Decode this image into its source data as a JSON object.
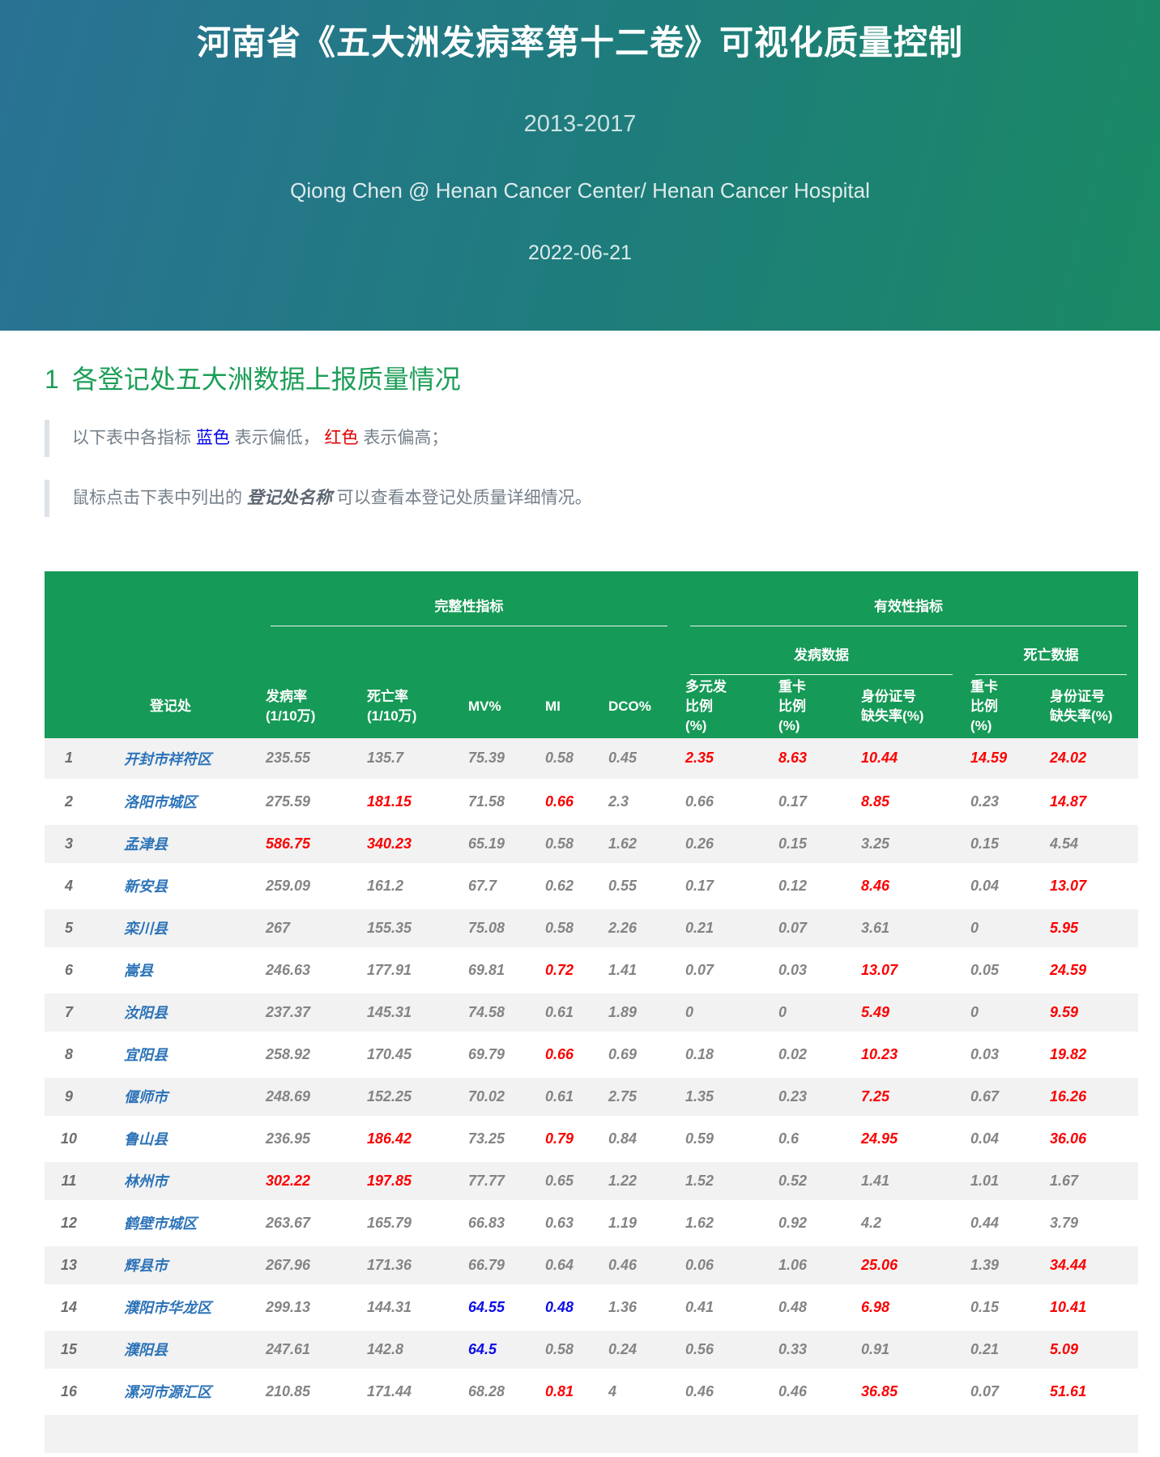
{
  "banner": {
    "title": "河南省《五大洲发病率第十二卷》可视化质量控制",
    "subtitle": "2013-2017",
    "author": "Qiong Chen @ Henan Cancer Center/ Henan Cancer Hospital",
    "date": "2022-06-21",
    "gradient_left": "#2a7294",
    "gradient_right": "#1a8a63"
  },
  "section": {
    "number": "1",
    "title": "各登记处五大洲数据上报质量情况",
    "color": "#1c9e58"
  },
  "notes": {
    "note1": {
      "p1": "以下表中各指标 ",
      "blue_word": "蓝色",
      "p2": " 表示偏低， ",
      "red_word": "红色",
      "p3": " 表示偏高；"
    },
    "note2": {
      "p1": "鼠标点击下表中列出的 ",
      "em_word": "登记处名称",
      "p2": " 可以查看本登记处质量详细情况。"
    }
  },
  "table": {
    "colors": {
      "header_bg": "#169a57",
      "high_value": "#fb0000",
      "low_value": "#0d0de8",
      "normal_value": "#848484",
      "registry_link": "#2c73b8",
      "stripe": "#f2f2f2"
    },
    "header": {
      "group_completeness": "完整性指标",
      "group_validity": "有效性指标",
      "sub_incidence": "发病数据",
      "sub_mortality": "死亡数据",
      "columns": [
        "登记处",
        "发病率\n(1/10万)",
        "死亡率\n(1/10万)",
        "MV%",
        "MI",
        "DCO%",
        "多元发\n比例\n(%)",
        "重卡\n比例\n(%)",
        "身份证号\n缺失率(%)",
        "重卡\n比例\n(%)",
        "身份证号\n缺失率(%)"
      ]
    },
    "rows": [
      {
        "no": "1",
        "registry": "开封市祥符区",
        "values": [
          {
            "v": "235.55"
          },
          {
            "v": "135.7"
          },
          {
            "v": "75.39"
          },
          {
            "v": "0.58"
          },
          {
            "v": "0.45"
          },
          {
            "v": "2.35",
            "f": "high"
          },
          {
            "v": "8.63",
            "f": "high"
          },
          {
            "v": "10.44",
            "f": "high"
          },
          {
            "v": "14.59",
            "f": "high"
          },
          {
            "v": "24.02",
            "f": "high"
          }
        ]
      },
      {
        "no": "2",
        "registry": "洛阳市城区",
        "values": [
          {
            "v": "275.59"
          },
          {
            "v": "181.15",
            "f": "high"
          },
          {
            "v": "71.58"
          },
          {
            "v": "0.66",
            "f": "high"
          },
          {
            "v": "2.3"
          },
          {
            "v": "0.66"
          },
          {
            "v": "0.17"
          },
          {
            "v": "8.85",
            "f": "high"
          },
          {
            "v": "0.23"
          },
          {
            "v": "14.87",
            "f": "high"
          }
        ]
      },
      {
        "no": "3",
        "registry": "孟津县",
        "values": [
          {
            "v": "586.75",
            "f": "high"
          },
          {
            "v": "340.23",
            "f": "high"
          },
          {
            "v": "65.19"
          },
          {
            "v": "0.58"
          },
          {
            "v": "1.62"
          },
          {
            "v": "0.26"
          },
          {
            "v": "0.15"
          },
          {
            "v": "3.25"
          },
          {
            "v": "0.15"
          },
          {
            "v": "4.54"
          }
        ]
      },
      {
        "no": "4",
        "registry": "新安县",
        "values": [
          {
            "v": "259.09"
          },
          {
            "v": "161.2"
          },
          {
            "v": "67.7"
          },
          {
            "v": "0.62"
          },
          {
            "v": "0.55"
          },
          {
            "v": "0.17"
          },
          {
            "v": "0.12"
          },
          {
            "v": "8.46",
            "f": "high"
          },
          {
            "v": "0.04"
          },
          {
            "v": "13.07",
            "f": "high"
          }
        ]
      },
      {
        "no": "5",
        "registry": "栾川县",
        "values": [
          {
            "v": "267"
          },
          {
            "v": "155.35"
          },
          {
            "v": "75.08"
          },
          {
            "v": "0.58"
          },
          {
            "v": "2.26"
          },
          {
            "v": "0.21"
          },
          {
            "v": "0.07"
          },
          {
            "v": "3.61"
          },
          {
            "v": "0"
          },
          {
            "v": "5.95",
            "f": "high"
          }
        ]
      },
      {
        "no": "6",
        "registry": "嵩县",
        "values": [
          {
            "v": "246.63"
          },
          {
            "v": "177.91"
          },
          {
            "v": "69.81"
          },
          {
            "v": "0.72",
            "f": "high"
          },
          {
            "v": "1.41"
          },
          {
            "v": "0.07"
          },
          {
            "v": "0.03"
          },
          {
            "v": "13.07",
            "f": "high"
          },
          {
            "v": "0.05"
          },
          {
            "v": "24.59",
            "f": "high"
          }
        ]
      },
      {
        "no": "7",
        "registry": "汝阳县",
        "values": [
          {
            "v": "237.37"
          },
          {
            "v": "145.31"
          },
          {
            "v": "74.58"
          },
          {
            "v": "0.61"
          },
          {
            "v": "1.89"
          },
          {
            "v": "0"
          },
          {
            "v": "0"
          },
          {
            "v": "5.49",
            "f": "high"
          },
          {
            "v": "0"
          },
          {
            "v": "9.59",
            "f": "high"
          }
        ]
      },
      {
        "no": "8",
        "registry": "宜阳县",
        "values": [
          {
            "v": "258.92"
          },
          {
            "v": "170.45"
          },
          {
            "v": "69.79"
          },
          {
            "v": "0.66",
            "f": "high"
          },
          {
            "v": "0.69"
          },
          {
            "v": "0.18"
          },
          {
            "v": "0.02"
          },
          {
            "v": "10.23",
            "f": "high"
          },
          {
            "v": "0.03"
          },
          {
            "v": "19.82",
            "f": "high"
          }
        ]
      },
      {
        "no": "9",
        "registry": "偃师市",
        "values": [
          {
            "v": "248.69"
          },
          {
            "v": "152.25"
          },
          {
            "v": "70.02"
          },
          {
            "v": "0.61"
          },
          {
            "v": "2.75"
          },
          {
            "v": "1.35"
          },
          {
            "v": "0.23"
          },
          {
            "v": "7.25",
            "f": "high"
          },
          {
            "v": "0.67"
          },
          {
            "v": "16.26",
            "f": "high"
          }
        ]
      },
      {
        "no": "10",
        "registry": "鲁山县",
        "values": [
          {
            "v": "236.95"
          },
          {
            "v": "186.42",
            "f": "high"
          },
          {
            "v": "73.25"
          },
          {
            "v": "0.79",
            "f": "high"
          },
          {
            "v": "0.84"
          },
          {
            "v": "0.59"
          },
          {
            "v": "0.6"
          },
          {
            "v": "24.95",
            "f": "high"
          },
          {
            "v": "0.04"
          },
          {
            "v": "36.06",
            "f": "high"
          }
        ]
      },
      {
        "no": "11",
        "registry": "林州市",
        "values": [
          {
            "v": "302.22",
            "f": "high"
          },
          {
            "v": "197.85",
            "f": "high"
          },
          {
            "v": "77.77"
          },
          {
            "v": "0.65"
          },
          {
            "v": "1.22"
          },
          {
            "v": "1.52"
          },
          {
            "v": "0.52"
          },
          {
            "v": "1.41"
          },
          {
            "v": "1.01"
          },
          {
            "v": "1.67"
          }
        ]
      },
      {
        "no": "12",
        "registry": "鹤壁市城区",
        "values": [
          {
            "v": "263.67"
          },
          {
            "v": "165.79"
          },
          {
            "v": "66.83"
          },
          {
            "v": "0.63"
          },
          {
            "v": "1.19"
          },
          {
            "v": "1.62"
          },
          {
            "v": "0.92"
          },
          {
            "v": "4.2"
          },
          {
            "v": "0.44"
          },
          {
            "v": "3.79"
          }
        ]
      },
      {
        "no": "13",
        "registry": "辉县市",
        "values": [
          {
            "v": "267.96"
          },
          {
            "v": "171.36"
          },
          {
            "v": "66.79"
          },
          {
            "v": "0.64"
          },
          {
            "v": "0.46"
          },
          {
            "v": "0.06"
          },
          {
            "v": "1.06"
          },
          {
            "v": "25.06",
            "f": "high"
          },
          {
            "v": "1.39"
          },
          {
            "v": "34.44",
            "f": "high"
          }
        ]
      },
      {
        "no": "14",
        "registry": "濮阳市华龙区",
        "values": [
          {
            "v": "299.13"
          },
          {
            "v": "144.31"
          },
          {
            "v": "64.55",
            "f": "low"
          },
          {
            "v": "0.48",
            "f": "low"
          },
          {
            "v": "1.36"
          },
          {
            "v": "0.41"
          },
          {
            "v": "0.48"
          },
          {
            "v": "6.98",
            "f": "high"
          },
          {
            "v": "0.15"
          },
          {
            "v": "10.41",
            "f": "high"
          }
        ]
      },
      {
        "no": "15",
        "registry": "濮阳县",
        "values": [
          {
            "v": "247.61"
          },
          {
            "v": "142.8"
          },
          {
            "v": "64.5",
            "f": "low"
          },
          {
            "v": "0.58"
          },
          {
            "v": "0.24"
          },
          {
            "v": "0.56"
          },
          {
            "v": "0.33"
          },
          {
            "v": "0.91"
          },
          {
            "v": "0.21"
          },
          {
            "v": "5.09",
            "f": "high"
          }
        ]
      },
      {
        "no": "16",
        "registry": "漯河市源汇区",
        "values": [
          {
            "v": "210.85"
          },
          {
            "v": "171.44"
          },
          {
            "v": "68.28"
          },
          {
            "v": "0.81",
            "f": "high"
          },
          {
            "v": "4"
          },
          {
            "v": "0.46"
          },
          {
            "v": "0.46"
          },
          {
            "v": "36.85",
            "f": "high"
          },
          {
            "v": "0.07"
          },
          {
            "v": "51.61",
            "f": "high"
          }
        ]
      }
    ]
  }
}
